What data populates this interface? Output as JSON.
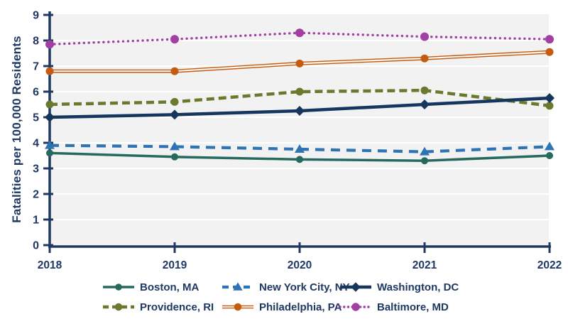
{
  "chart_data": {
    "type": "line",
    "ylabel": "Fatalities per 100,000 Residents",
    "x": [
      "2018",
      "2019",
      "2020",
      "2021",
      "2022"
    ],
    "yticks": [
      0,
      1,
      2,
      3,
      4,
      5,
      6,
      7,
      8,
      9
    ],
    "ylim": [
      0,
      9
    ],
    "grid": "horizontal-white",
    "legend_position": "bottom",
    "plot_bg": "#f2f2f2",
    "gridline_color": "#ffffff",
    "axis_color": "#1f3864",
    "series": [
      {
        "name": "Boston, MA",
        "color": "#26695f",
        "line": "solid",
        "marker": "circle",
        "marker_size": 5,
        "line_width": 3.5,
        "values": [
          3.6,
          3.45,
          3.35,
          3.3,
          3.5
        ]
      },
      {
        "name": "New York City, NY",
        "color": "#2e74b5",
        "line": "dashed",
        "dash": "13 9",
        "legend_dash": "9 6",
        "marker": "triangle",
        "marker_size": 6,
        "line_width": 4.2,
        "values": [
          3.9,
          3.85,
          3.75,
          3.65,
          3.85
        ]
      },
      {
        "name": "Washington, DC",
        "color": "#17365d",
        "line": "solid",
        "marker": "diamond",
        "marker_size": 6,
        "line_width": 4.5,
        "values": [
          5.0,
          5.1,
          5.25,
          5.5,
          5.75
        ]
      },
      {
        "name": "Providence, RI",
        "color": "#697a2f",
        "line": "dashed",
        "dash": "11 6",
        "legend_dash": "8 5",
        "marker": "circle",
        "marker_size": 5.5,
        "line_width": 4.5,
        "values": [
          5.5,
          5.6,
          6.0,
          6.05,
          5.45
        ]
      },
      {
        "name": "Philadelphia, PA",
        "color": "#c55a11",
        "line": "double",
        "inner_color": "#fbf7f3",
        "marker": "circle",
        "marker_size": 5.5,
        "line_width": 5,
        "values": [
          6.8,
          6.8,
          7.1,
          7.3,
          7.55
        ]
      },
      {
        "name": "Baltimore, MD",
        "color": "#a23fa2",
        "line": "dotted",
        "dash": "0.1 6.8",
        "legend_dash": "0.1 5.6",
        "marker": "circle",
        "marker_size": 6,
        "line_width": 3.4,
        "values": [
          7.85,
          8.05,
          8.3,
          8.15,
          8.05
        ]
      }
    ]
  }
}
